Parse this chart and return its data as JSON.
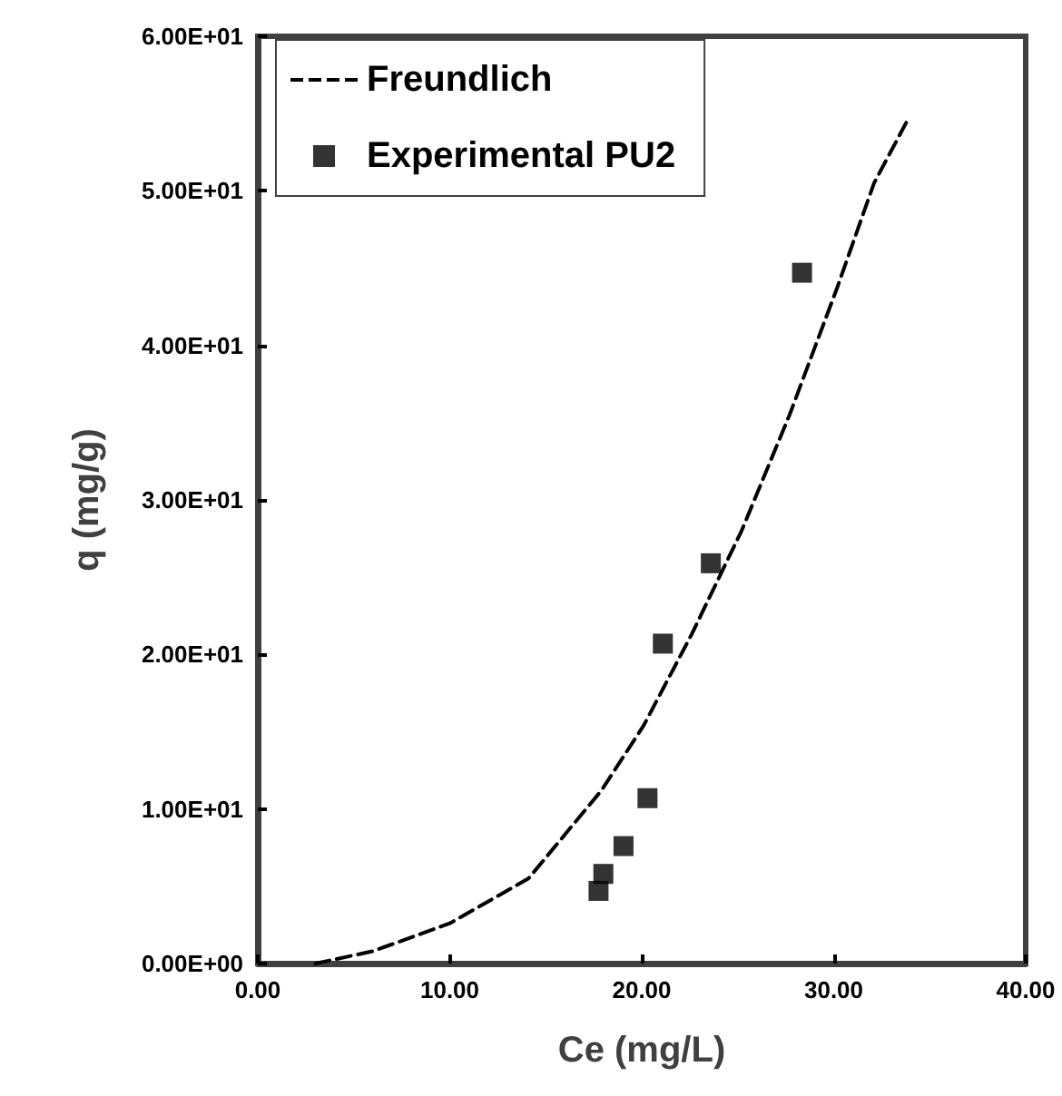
{
  "chart_data": {
    "type": "scatter",
    "xlabel": "Ce (mg/L)",
    "ylabel": "q (mg/g)",
    "xlim": [
      0,
      40
    ],
    "xticks": [
      {
        "value": 0,
        "label": "0.00"
      },
      {
        "value": 10,
        "label": "10.00"
      },
      {
        "value": 20,
        "label": "20.00"
      },
      {
        "value": 30,
        "label": "30.00"
      },
      {
        "value": 40,
        "label": "40.00"
      }
    ],
    "ylim": [
      0,
      60
    ],
    "yticks": [
      {
        "value": 0,
        "label": "0.00E+00"
      },
      {
        "value": 10,
        "label": "1.00E+01"
      },
      {
        "value": 20,
        "label": "2.00E+01"
      },
      {
        "value": 30,
        "label": "3.00E+01"
      },
      {
        "value": 40,
        "label": "4.00E+01"
      },
      {
        "value": 50,
        "label": "5.00E+01"
      },
      {
        "value": 60,
        "label": "6.00E+01"
      }
    ],
    "grid": false,
    "legend": "top left",
    "series": [
      {
        "name": "Freundlich",
        "type": "line",
        "color": "#000000",
        "line_style": "dashed",
        "marker": "none",
        "x": [
          3.0,
          6.0,
          10.0,
          14.1,
          17.9,
          20.1,
          22.6,
          25.2,
          27.7,
          30.2,
          32.1,
          33.9
        ],
        "values": [
          0.0,
          0.8,
          2.6,
          5.5,
          11.2,
          15.4,
          21.3,
          28.0,
          35.5,
          43.8,
          50.5,
          54.7
        ]
      },
      {
        "name": "Experimental PU2",
        "color": "#000000",
        "marker": "square",
        "x": [
          17.75,
          18.0,
          19.05,
          20.3,
          21.1,
          23.6,
          28.35
        ],
        "values": [
          4.7,
          5.8,
          7.6,
          10.7,
          20.7,
          25.9,
          44.7
        ]
      }
    ]
  }
}
